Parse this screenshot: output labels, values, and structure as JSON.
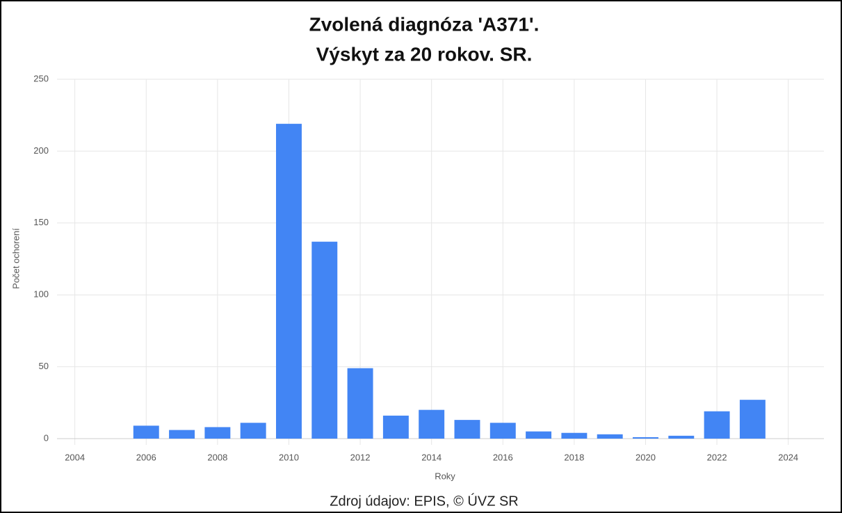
{
  "chart_data": {
    "type": "bar",
    "title": [
      "Zvolená diagnóza 'A371'.",
      "Výskyt za 20 rokov. SR."
    ],
    "ylabel": "Počet ochorení",
    "xlabel": "Roky",
    "source": "Zdroj údajov: EPIS, © ÚVZ SR",
    "x": [
      2006,
      2007,
      2008,
      2009,
      2010,
      2011,
      2012,
      2013,
      2014,
      2015,
      2016,
      2017,
      2018,
      2019,
      2020,
      2021,
      2022,
      2023
    ],
    "values": [
      9,
      6,
      8,
      11,
      219,
      137,
      49,
      16,
      20,
      13,
      11,
      5,
      4,
      3,
      1,
      2,
      19,
      27
    ],
    "color": "#4285f4",
    "xlim": [
      2003.5,
      2025
    ],
    "xticks": [
      2004,
      2006,
      2008,
      2010,
      2012,
      2014,
      2016,
      2018,
      2020,
      2022,
      2024
    ],
    "ylim": [
      0,
      250
    ],
    "yticks": [
      0,
      50,
      100,
      150,
      200,
      250
    ],
    "grid": true
  }
}
